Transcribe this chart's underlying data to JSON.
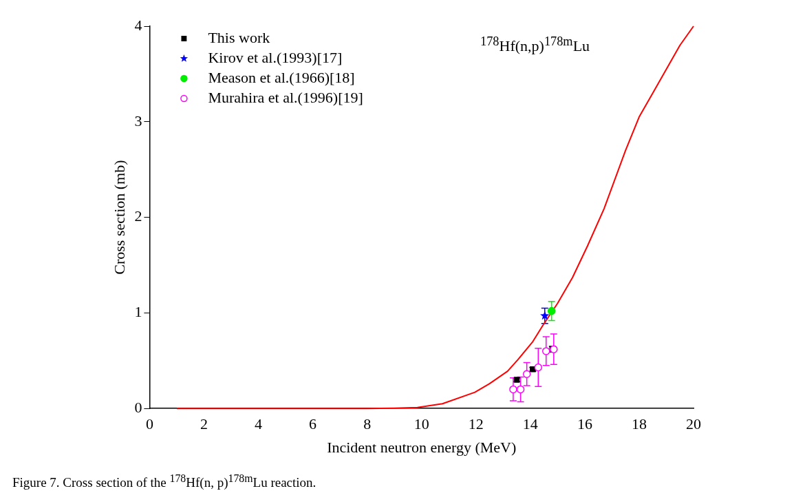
{
  "chart_data": {
    "type": "scatter",
    "xlabel": "Incident neutron energy (MeV)",
    "ylabel": "Cross section (mb)",
    "xlim": [
      0,
      20
    ],
    "xticks": [
      0,
      2,
      4,
      6,
      8,
      10,
      12,
      14,
      16,
      18,
      20
    ],
    "ylim": [
      0,
      4
    ],
    "yticks": [
      0,
      1,
      2,
      3,
      4
    ],
    "grid": false,
    "legend": "top left",
    "annotations": [
      "$^{178}$Hf(n,p)$^{178m}$Lu",
      "Figure 7. Cross section of the $^{178}$Hf(n, p)$^{178m}$Lu reaction."
    ],
    "series": [
      {
        "name": "This work",
        "marker": "square",
        "color": "#000000",
        "x": [
          13.5,
          14.09,
          14.81
        ],
        "values": [
          0.3,
          0.41,
          0.62
        ],
        "errors": [
          0.02,
          0.02,
          0.03
        ]
      },
      {
        "name": "Kirov et al.(1993)[17]",
        "marker": "star",
        "color": "#0000ff",
        "x": [
          14.53
        ],
        "values": [
          0.97
        ],
        "errors": [
          0.08
        ]
      },
      {
        "name": "Meason et al.(1966)[18]",
        "marker": "circle",
        "color": "#00ee00",
        "x": [
          14.78
        ],
        "values": [
          1.02
        ],
        "errors": [
          0.1
        ]
      },
      {
        "name": "Murahira et al.(1996)[19]",
        "marker": "circle",
        "color": "#ff00ff",
        "x": [
          13.37,
          13.64,
          13.87,
          14.29,
          14.58,
          14.86
        ],
        "values": [
          0.2,
          0.2,
          0.36,
          0.43,
          0.6,
          0.62
        ],
        "errors": [
          0.12,
          0.13,
          0.12,
          0.2,
          0.15,
          0.16
        ]
      },
      {
        "type": "line",
        "marker": "none",
        "color": "#ff0000",
        "x": [
          1,
          8,
          9,
          9.85,
          10.77,
          11.96,
          12.5,
          13.16,
          13.54,
          14.09,
          14.46,
          15.0,
          15.55,
          16.1,
          16.71,
          17.5,
          18.0,
          18.5,
          19.0,
          19.5,
          20.0
        ],
        "values": [
          0,
          0,
          0.003,
          0.01,
          0.05,
          0.17,
          0.26,
          0.39,
          0.51,
          0.7,
          0.87,
          1.1,
          1.37,
          1.7,
          2.09,
          2.7,
          3.05,
          3.3,
          3.55,
          3.8,
          4.0
        ]
      }
    ]
  }
}
